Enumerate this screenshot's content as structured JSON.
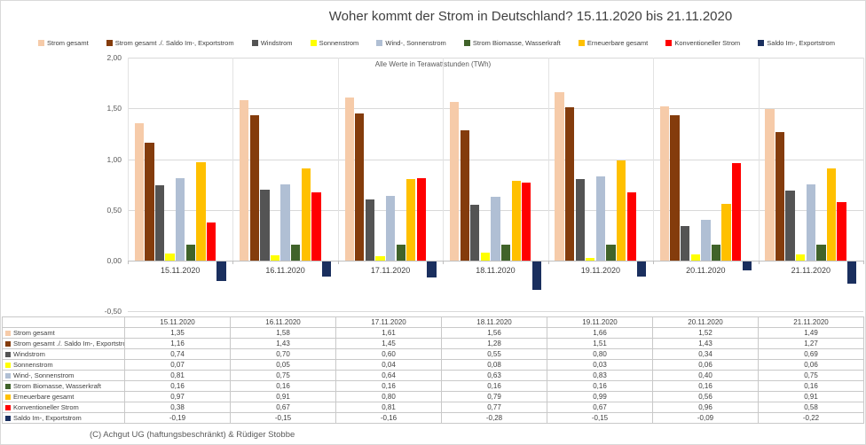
{
  "title": "Woher kommt der Strom in Deutschland? 15.11.2020 bis 21.11.2020",
  "subtitle": "Alle Werte in Terawattstunden (TWh)",
  "footer": "(C) Achgut UG (haftungsbeschränkt) & Rüdiger Stobbe",
  "colors": {
    "grid": "#d9d9d9",
    "axis": "#bfbfbf",
    "text": "#404040"
  },
  "chart_data": {
    "type": "bar",
    "title": "Woher kommt der Strom in Deutschland? 15.11.2020 bis 21.11.2020",
    "subtitle": "Alle Werte in Terawattstunden (TWh)",
    "ylabel": "TWh",
    "ylim": [
      -0.5,
      2.0
    ],
    "grid": true,
    "legend_position": "top",
    "categories": [
      "15.11.2020",
      "16.11.2020",
      "17.11.2020",
      "18.11.2020",
      "19.11.2020",
      "20.11.2020",
      "21.11.2020"
    ],
    "y_axis_ticks": [
      {
        "value": 2.0,
        "label": "2,00"
      },
      {
        "value": 1.5,
        "label": "1,50"
      },
      {
        "value": 1.0,
        "label": "1,00"
      },
      {
        "value": 0.5,
        "label": "0,50"
      },
      {
        "value": 0.0,
        "label": "0,00"
      },
      {
        "value": -0.5,
        "label": "-0,50"
      }
    ],
    "series": [
      {
        "name": "Strom gesamt",
        "color": "#F6CBA9",
        "values": [
          1.35,
          1.58,
          1.61,
          1.56,
          1.66,
          1.52,
          1.49
        ]
      },
      {
        "name": "Strom gesamt ./. Saldo Im-, Exportstrom",
        "color": "#843C0C",
        "values": [
          1.16,
          1.43,
          1.45,
          1.28,
          1.51,
          1.43,
          1.27
        ]
      },
      {
        "name": "Windstrom",
        "color": "#545454",
        "values": [
          0.74,
          0.7,
          0.6,
          0.55,
          0.8,
          0.34,
          0.69
        ]
      },
      {
        "name": "Sonnenstrom",
        "color": "#FFFF00",
        "values": [
          0.07,
          0.05,
          0.04,
          0.08,
          0.03,
          0.06,
          0.06
        ]
      },
      {
        "name": "Wind-, Sonnenstrom",
        "color": "#B0BFD4",
        "values": [
          0.81,
          0.75,
          0.64,
          0.63,
          0.83,
          0.4,
          0.75
        ]
      },
      {
        "name": "Strom Biomasse, Wasserkraft",
        "color": "#40632A",
        "values": [
          0.16,
          0.16,
          0.16,
          0.16,
          0.16,
          0.16,
          0.16
        ]
      },
      {
        "name": "Erneuerbare gesamt",
        "color": "#FFC000",
        "values": [
          0.97,
          0.91,
          0.8,
          0.79,
          0.99,
          0.56,
          0.91
        ]
      },
      {
        "name": "Konventioneller Strom",
        "color": "#FF0000",
        "values": [
          0.38,
          0.67,
          0.81,
          0.77,
          0.67,
          0.96,
          0.58
        ]
      },
      {
        "name": "Saldo Im-, Exportstrom",
        "color": "#1A2F5E",
        "values": [
          -0.19,
          -0.15,
          -0.16,
          -0.28,
          -0.15,
          -0.09,
          -0.22
        ]
      }
    ]
  }
}
